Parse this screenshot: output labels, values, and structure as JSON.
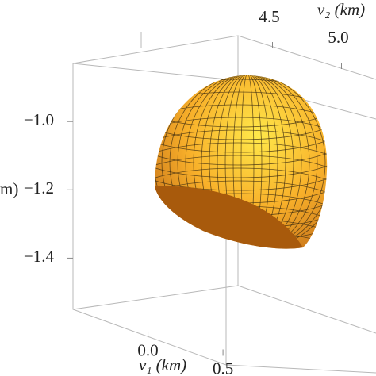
{
  "chart_data": {
    "type": "surface3d",
    "xlabel": "v₁ (km)",
    "ylabel": "v₂ (km)",
    "zlabel": "m)",
    "xlim": [
      -0.5,
      0.6
    ],
    "xticks": [
      {
        "value": 0,
        "label": "0.0"
      },
      0.5
    ],
    "ylim": [
      4.25,
      5.25
    ],
    "yticks": [
      4.5,
      {
        "value": 5,
        "label": "5.0"
      }
    ],
    "zlim": [
      -1.55,
      -0.83
    ],
    "zticks": [
      {
        "value": -1.0,
        "label": "−1.0"
      },
      {
        "value": -1.2,
        "label": "−1.2"
      },
      {
        "value": -1.4,
        "label": "−1.4"
      }
    ],
    "color": "#f5a623"
  }
}
